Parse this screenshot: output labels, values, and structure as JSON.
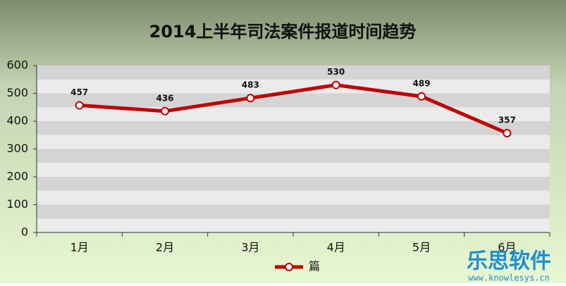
{
  "chart_data": {
    "type": "line",
    "title": "2014上半年司法案件报道时间趋势",
    "categories": [
      "1月",
      "2月",
      "3月",
      "4月",
      "5月",
      "6月"
    ],
    "series": [
      {
        "name": "篇",
        "color": "#c00000",
        "values": [
          457,
          436,
          483,
          530,
          489,
          357
        ]
      }
    ],
    "ylim": [
      0,
      600
    ],
    "yticks": [
      0,
      100,
      200,
      300,
      400,
      500,
      600
    ],
    "grid": true,
    "legend": "bottom",
    "data_labels": true
  },
  "watermark": {
    "brand": "乐思软件",
    "url": "www.knowlesys.cn"
  }
}
